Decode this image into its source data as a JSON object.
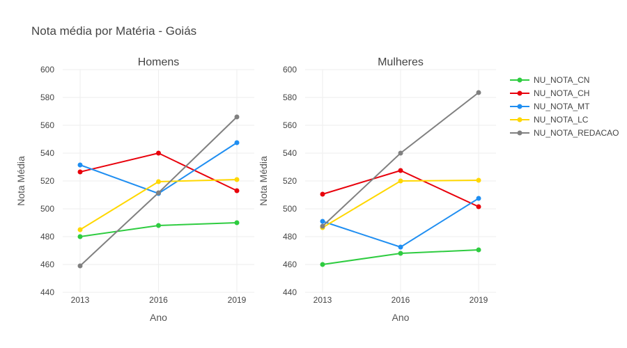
{
  "chart_data": {
    "type": "line",
    "title": "Nota média por Matéria - Goiás",
    "x": [
      "2013",
      "2016",
      "2019"
    ],
    "xlabel": "Ano",
    "ylabel": "Nota Média",
    "ylim": [
      440,
      600
    ],
    "yticks": [
      440,
      460,
      480,
      500,
      520,
      540,
      560,
      580,
      600
    ],
    "grid": true,
    "legend_position": "right",
    "series_meta": [
      {
        "name": "NU_NOTA_CN",
        "color": "#2ecc40"
      },
      {
        "name": "NU_NOTA_CH",
        "color": "#e8000b"
      },
      {
        "name": "NU_NOTA_MT",
        "color": "#1f8ef1"
      },
      {
        "name": "NU_NOTA_LC",
        "color": "#ffd700"
      },
      {
        "name": "NU_NOTA_REDACAO",
        "color": "#808080"
      }
    ],
    "panels": [
      {
        "subtitle": "Homens",
        "series": [
          {
            "name": "NU_NOTA_CN",
            "values": [
              480,
              488,
              490
            ]
          },
          {
            "name": "NU_NOTA_CH",
            "values": [
              526.5,
              540,
              513
            ]
          },
          {
            "name": "NU_NOTA_MT",
            "values": [
              531.5,
              511,
              547.5
            ]
          },
          {
            "name": "NU_NOTA_LC",
            "values": [
              485,
              519.5,
              521
            ]
          },
          {
            "name": "NU_NOTA_REDACAO",
            "values": [
              459,
              511.5,
              566
            ]
          }
        ]
      },
      {
        "subtitle": "Mulheres",
        "series": [
          {
            "name": "NU_NOTA_CN",
            "values": [
              460,
              468,
              470.5
            ]
          },
          {
            "name": "NU_NOTA_CH",
            "values": [
              510.5,
              527.5,
              501.5
            ]
          },
          {
            "name": "NU_NOTA_MT",
            "values": [
              491,
              472.5,
              507.5
            ]
          },
          {
            "name": "NU_NOTA_LC",
            "values": [
              486.5,
              520,
              520.5
            ]
          },
          {
            "name": "NU_NOTA_REDACAO",
            "values": [
              487.5,
              540,
              583.5
            ]
          }
        ]
      }
    ]
  }
}
